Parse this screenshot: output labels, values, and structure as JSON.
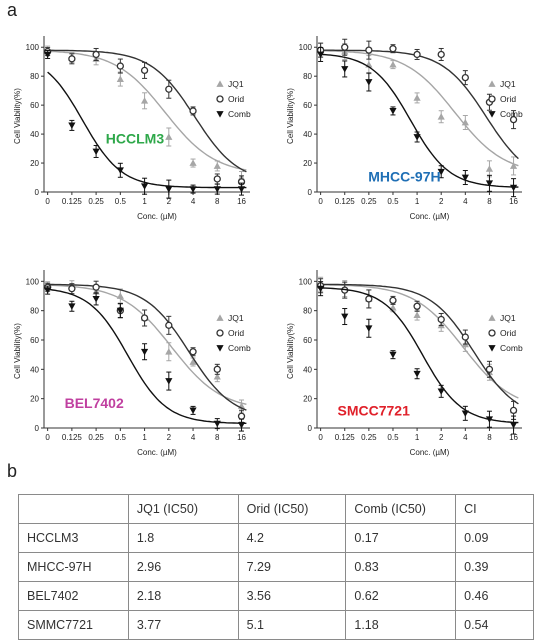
{
  "panel_a_label": "a",
  "panel_b_label": "b",
  "chart_data": [
    {
      "type": "line",
      "cell_line_label": "HCCLM3",
      "label_color": "#2ea84a",
      "xlabel": "Conc. (µM)",
      "ylabel": "Cell Viability(%)",
      "xscale": "log2",
      "xticks": [
        "0",
        "0.125",
        "0.25",
        "0.5",
        "1",
        "2",
        "4",
        "8",
        "16"
      ],
      "yticks": [
        "0",
        "20",
        "40",
        "60",
        "80",
        "100"
      ],
      "ylim": [
        0,
        105
      ],
      "legend_position": "right",
      "series": [
        {
          "name": "JQ1",
          "marker": "triangle-up",
          "color": "#a6a6a6",
          "x": [
            0.0625,
            0.125,
            0.25,
            0.5,
            1,
            2,
            4,
            8,
            16
          ],
          "y": [
            98,
            93,
            92,
            78,
            63,
            38,
            20,
            18,
            10
          ]
        },
        {
          "name": "Orid",
          "marker": "circle-open",
          "color": "#333333",
          "x": [
            0.0625,
            0.125,
            0.25,
            0.5,
            1,
            2,
            4,
            8,
            16
          ],
          "y": [
            97,
            92,
            95,
            87,
            84,
            71,
            56,
            9,
            7
          ]
        },
        {
          "name": "Comb",
          "marker": "triangle-down",
          "color": "#111111",
          "x": [
            0.0625,
            0.125,
            0.25,
            0.5,
            1,
            2,
            4,
            8,
            16
          ],
          "y": [
            95,
            46,
            28,
            15,
            4,
            2,
            2,
            2,
            2
          ]
        }
      ]
    },
    {
      "type": "line",
      "cell_line_label": "MHCC-97H",
      "label_color": "#1f6fb5",
      "xlabel": "Conc. (µM)",
      "ylabel": "Cell Viability(%)",
      "xscale": "log2",
      "xticks": [
        "0",
        "0.125",
        "0.25",
        "0.5",
        "1",
        "2",
        "4",
        "8",
        "16"
      ],
      "yticks": [
        "0",
        "20",
        "40",
        "60",
        "80",
        "100"
      ],
      "ylim": [
        0,
        105
      ],
      "legend_position": "right",
      "series": [
        {
          "name": "JQ1",
          "marker": "triangle-up",
          "color": "#a6a6a6",
          "x": [
            0.0625,
            0.125,
            0.25,
            0.5,
            1,
            2,
            4,
            8,
            16
          ],
          "y": [
            98,
            97,
            88,
            88,
            65,
            52,
            48,
            16,
            18
          ]
        },
        {
          "name": "Orid",
          "marker": "circle-open",
          "color": "#333333",
          "x": [
            0.0625,
            0.125,
            0.25,
            0.5,
            1,
            2,
            4,
            8,
            16
          ],
          "y": [
            98,
            100,
            98,
            99,
            95,
            95,
            79,
            62,
            50
          ]
        },
        {
          "name": "Comb",
          "marker": "triangle-down",
          "color": "#111111",
          "x": [
            0.0625,
            0.125,
            0.25,
            0.5,
            1,
            2,
            4,
            8,
            16
          ],
          "y": [
            95,
            85,
            76,
            56,
            38,
            14,
            10,
            6,
            3
          ]
        }
      ]
    },
    {
      "type": "line",
      "cell_line_label": "BEL7402",
      "label_color": "#c040a0",
      "xlabel": "Conc. (µM)",
      "ylabel": "Cell Viability(%)",
      "xscale": "log2",
      "xticks": [
        "0",
        "0.125",
        "0.25",
        "0.5",
        "1",
        "2",
        "4",
        "8",
        "16"
      ],
      "yticks": [
        "0",
        "20",
        "40",
        "60",
        "80",
        "100"
      ],
      "ylim": [
        0,
        105
      ],
      "legend_position": "right",
      "series": [
        {
          "name": "JQ1",
          "marker": "triangle-up",
          "color": "#a6a6a6",
          "x": [
            0.0625,
            0.125,
            0.25,
            0.5,
            1,
            2,
            4,
            8,
            16
          ],
          "y": [
            97,
            97,
            93,
            90,
            75,
            52,
            45,
            35,
            15
          ]
        },
        {
          "name": "Orid",
          "marker": "circle-open",
          "color": "#333333",
          "x": [
            0.0625,
            0.125,
            0.25,
            0.5,
            1,
            2,
            4,
            8,
            16
          ],
          "y": [
            96,
            95,
            96,
            80,
            75,
            70,
            52,
            40,
            8
          ]
        },
        {
          "name": "Comb",
          "marker": "triangle-down",
          "color": "#111111",
          "x": [
            0.0625,
            0.125,
            0.25,
            0.5,
            1,
            2,
            4,
            8,
            16
          ],
          "y": [
            94,
            83,
            88,
            80,
            52,
            32,
            12,
            3,
            2
          ]
        }
      ]
    },
    {
      "type": "line",
      "cell_line_label": "SMCC7721",
      "label_color": "#e0202a",
      "xlabel": "Conc. (µM)",
      "ylabel": "Cell Viability(%)",
      "xscale": "log2",
      "xticks": [
        "0",
        "0.125",
        "0.25",
        "0.5",
        "1",
        "2",
        "4",
        "8",
        "16"
      ],
      "yticks": [
        "0",
        "20",
        "40",
        "60",
        "80",
        "100"
      ],
      "ylim": [
        0,
        105
      ],
      "legend_position": "right",
      "series": [
        {
          "name": "JQ1",
          "marker": "triangle-up",
          "color": "#a6a6a6",
          "x": [
            0.0625,
            0.125,
            0.25,
            0.5,
            1,
            2,
            4,
            8,
            16
          ],
          "y": [
            98,
            95,
            88,
            82,
            77,
            70,
            57,
            38,
            12
          ]
        },
        {
          "name": "Orid",
          "marker": "circle-open",
          "color": "#333333",
          "x": [
            0.0625,
            0.125,
            0.25,
            0.5,
            1,
            2,
            4,
            8,
            16
          ],
          "y": [
            97,
            94,
            88,
            87,
            83,
            74,
            62,
            40,
            12
          ]
        },
        {
          "name": "Comb",
          "marker": "triangle-down",
          "color": "#111111",
          "x": [
            0.0625,
            0.125,
            0.25,
            0.5,
            1,
            2,
            4,
            8,
            16
          ],
          "y": [
            95,
            76,
            68,
            50,
            37,
            25,
            10,
            6,
            2
          ]
        }
      ]
    }
  ],
  "table": {
    "headers": [
      "",
      "JQ1 (IC50)",
      "Orid (IC50)",
      "Comb (IC50)",
      "CI"
    ],
    "rows": [
      [
        "HCCLM3",
        "1.8",
        "4.2",
        "0.17",
        "0.09"
      ],
      [
        "MHCC-97H",
        "2.96",
        "7.29",
        "0.83",
        "0.39"
      ],
      [
        "BEL7402",
        "2.18",
        "3.56",
        "0.62",
        "0.46"
      ],
      [
        "SMMC7721",
        "3.77",
        "5.1",
        "1.18",
        "0.54"
      ]
    ]
  }
}
